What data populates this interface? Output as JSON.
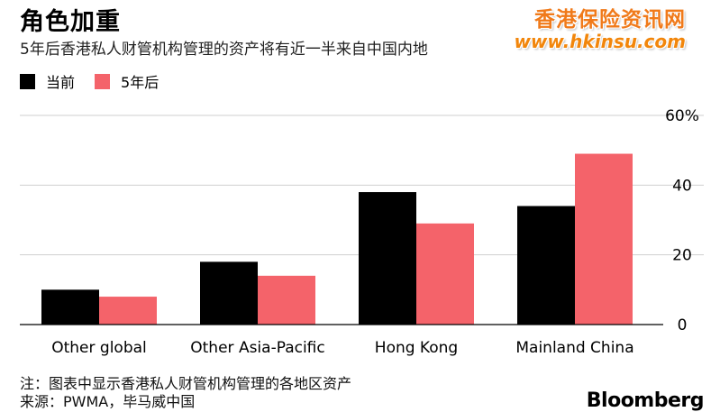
{
  "header": {
    "title": "角色加重",
    "subtitle": "5年后香港私人财管机构管理的资产将有近一半来自中国内地"
  },
  "watermark": {
    "name": "香港保险资讯网",
    "url": "www.hkinsu.com"
  },
  "footer": {
    "note": "注：图表中显示香港私人财管机构管理的各地区资产",
    "source": "来源：PWMA，毕马威中国",
    "brand": "Bloomberg"
  },
  "chart_data": {
    "type": "bar",
    "categories": [
      "Other global",
      "Other Asia-Pacific",
      "Hong Kong",
      "Mainland China"
    ],
    "series": [
      {
        "name": "当前",
        "color": "#000000",
        "values": [
          10,
          18,
          38,
          34
        ]
      },
      {
        "name": "5年后",
        "color": "#f4636a",
        "values": [
          8,
          14,
          29,
          49
        ]
      }
    ],
    "y_ticks": [
      "0",
      "20",
      "40",
      "60%"
    ],
    "ylim": [
      0,
      60
    ],
    "y_axis_side": "right",
    "grid": true,
    "legend_position": "top-left"
  }
}
